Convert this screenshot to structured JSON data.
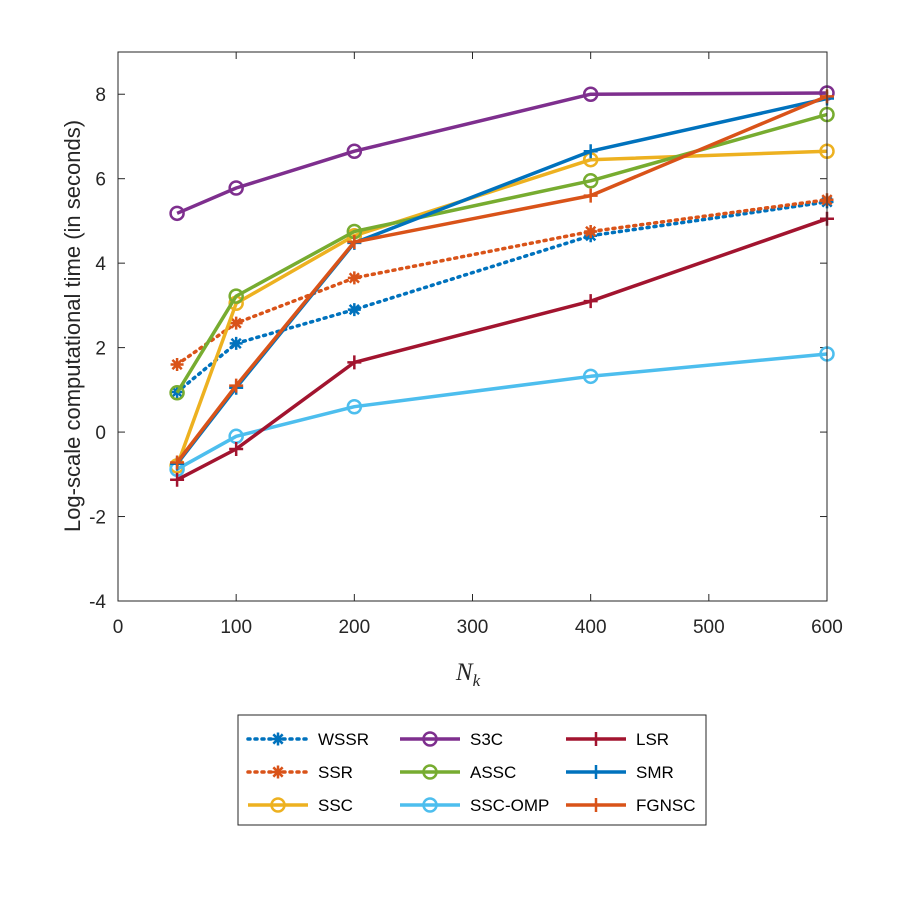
{
  "chart_data": {
    "type": "line",
    "title": "",
    "xlabel": "N",
    "xlabel_subscript": "k",
    "ylabel": "Log-scale computational time (in seconds)",
    "xlim": [
      0,
      600
    ],
    "ylim": [
      -4,
      9
    ],
    "x_ticks": [
      "0",
      "100",
      "200",
      "300",
      "400",
      "500",
      "600"
    ],
    "y_ticks": [
      "-4",
      "-2",
      "0",
      "2",
      "4",
      "6",
      "8"
    ],
    "grid": false,
    "x": [
      50,
      100,
      200,
      400,
      600
    ],
    "series": [
      {
        "name": "WSSR",
        "color": "#0072BD",
        "style": "dotted",
        "marker": "asterisk",
        "values": [
          0.95,
          2.1,
          2.9,
          4.65,
          5.45
        ]
      },
      {
        "name": "SSR",
        "color": "#D95319",
        "style": "dotted",
        "marker": "asterisk",
        "values": [
          1.6,
          2.58,
          3.65,
          4.75,
          5.5
        ]
      },
      {
        "name": "SSC",
        "color": "#EDB120",
        "style": "solid",
        "marker": "circle",
        "values": [
          -0.8,
          3.05,
          4.65,
          6.45,
          6.65
        ]
      },
      {
        "name": "S3C",
        "color": "#7E2F8E",
        "style": "solid",
        "marker": "circle",
        "values": [
          5.18,
          5.78,
          6.65,
          8.0,
          8.03
        ]
      },
      {
        "name": "ASSC",
        "color": "#77AC30",
        "style": "solid",
        "marker": "circle",
        "values": [
          0.93,
          3.22,
          4.75,
          5.95,
          7.52
        ]
      },
      {
        "name": "SSC-OMP",
        "color": "#4DBEEE",
        "style": "solid",
        "marker": "circle",
        "values": [
          -0.88,
          -0.1,
          0.6,
          1.32,
          1.85
        ]
      },
      {
        "name": "LSR",
        "color": "#A2142F",
        "style": "solid",
        "marker": "plus",
        "values": [
          -1.13,
          -0.4,
          1.65,
          3.1,
          5.05
        ]
      },
      {
        "name": "SMR",
        "color": "#0072BD",
        "style": "solid",
        "marker": "plus",
        "values": [
          -0.75,
          1.05,
          4.48,
          6.65,
          7.9
        ]
      },
      {
        "name": "FGNSC",
        "color": "#D95319",
        "style": "solid",
        "marker": "plus",
        "values": [
          -0.72,
          1.1,
          4.5,
          5.6,
          7.95
        ]
      }
    ],
    "legend_placement": "below"
  }
}
